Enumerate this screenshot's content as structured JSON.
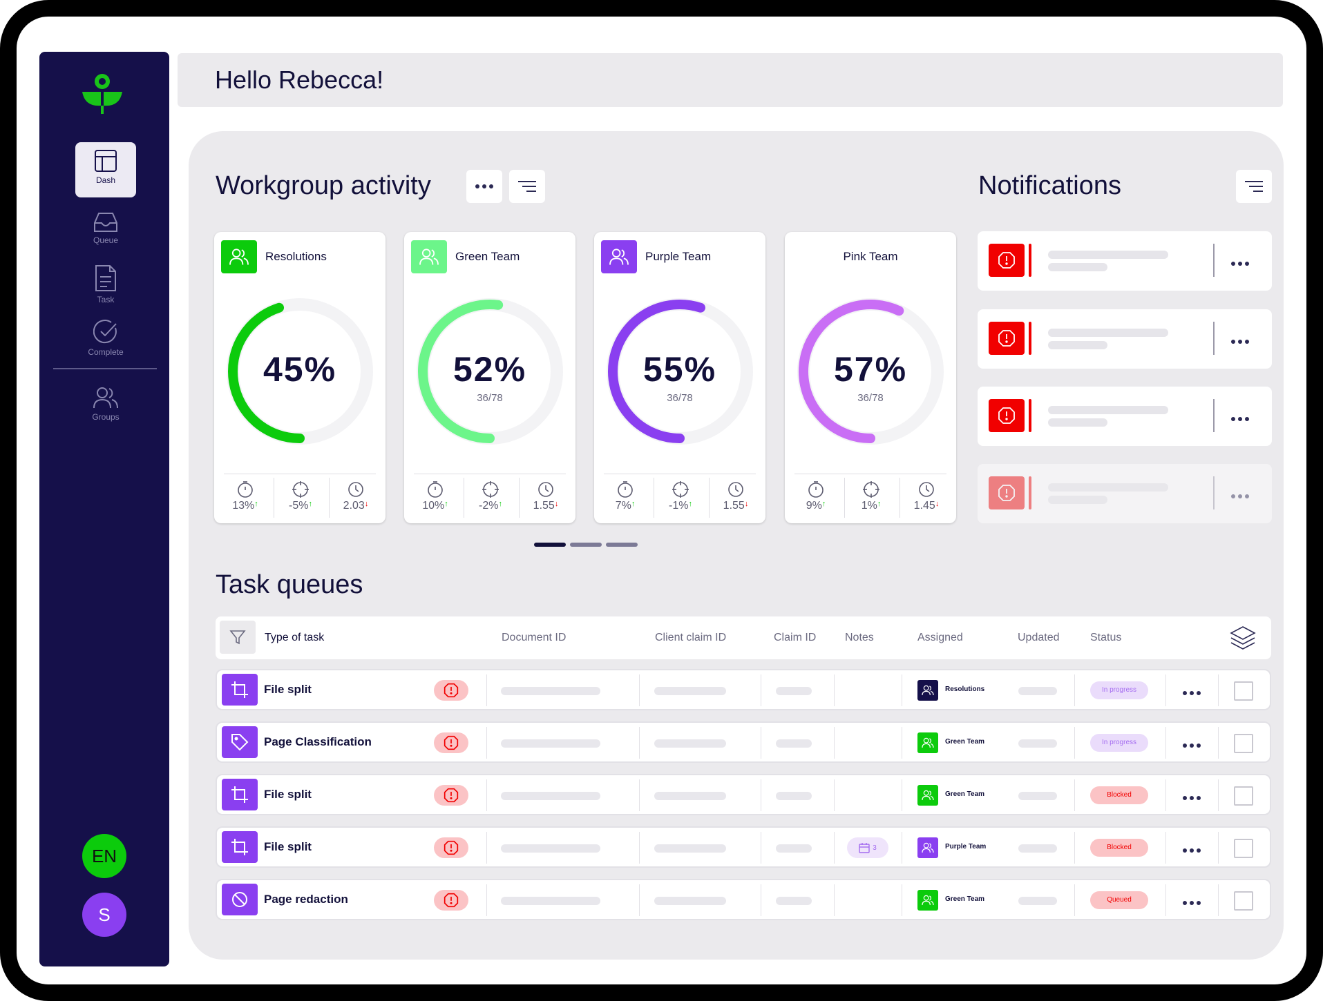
{
  "greeting": "Hello Rebecca!",
  "sidebar": {
    "items": [
      {
        "label": "Dash",
        "icon": "layout-icon",
        "active": true
      },
      {
        "label": "Queue",
        "icon": "inbox-icon"
      },
      {
        "label": "Task",
        "icon": "document-icon"
      },
      {
        "label": "Complete",
        "icon": "check-circle-icon"
      },
      {
        "label": "Groups",
        "icon": "users-icon"
      }
    ],
    "language": "EN",
    "user_initial": "S"
  },
  "workgroup": {
    "title": "Workgroup activity",
    "cards": [
      {
        "name": "Resolutions",
        "percent": "45%",
        "percent_value": 45,
        "ratio": "",
        "color": "#0ccb0c",
        "badge_color": "#0ccb0c",
        "stats": [
          {
            "value": "13%",
            "trend": "↑",
            "trend_color": "#0ccb0c"
          },
          {
            "value": "-5%",
            "trend": "↑",
            "trend_color": "#0ccb0c"
          },
          {
            "value": "2.03",
            "trend": "↓",
            "trend_color": "#f10000"
          }
        ]
      },
      {
        "name": "Green Team",
        "percent": "52%",
        "percent_value": 52,
        "ratio": "36/78",
        "color": "#6cf58a",
        "badge_color": "#6cf58a",
        "stats": [
          {
            "value": "10%",
            "trend": "↑",
            "trend_color": "#0ccb0c"
          },
          {
            "value": "-2%",
            "trend": "↑",
            "trend_color": "#0ccb0c"
          },
          {
            "value": "1.55",
            "trend": "↓",
            "trend_color": "#f10000"
          }
        ]
      },
      {
        "name": "Purple Team",
        "percent": "55%",
        "percent_value": 55,
        "ratio": "36/78",
        "color": "#8a3ff0",
        "badge_color": "#8a3ff0",
        "stats": [
          {
            "value": "7%",
            "trend": "↑",
            "trend_color": "#0ccb0c"
          },
          {
            "value": "-1%",
            "trend": "↑",
            "trend_color": "#0ccb0c"
          },
          {
            "value": "1.55",
            "trend": "↓",
            "trend_color": "#f10000"
          }
        ]
      },
      {
        "name": "Pink Team",
        "percent": "57%",
        "percent_value": 57,
        "ratio": "36/78",
        "color": "#c96ef5",
        "badge_color": "",
        "stats": [
          {
            "value": "9%",
            "trend": "↑",
            "trend_color": "#0ccb0c"
          },
          {
            "value": "1%",
            "trend": "↑",
            "trend_color": "#0ccb0c"
          },
          {
            "value": "1.45",
            "trend": "↓",
            "trend_color": "#f10000"
          }
        ]
      }
    ]
  },
  "notifications": {
    "title": "Notifications",
    "count": 4
  },
  "task_queues": {
    "title": "Task queues",
    "columns": [
      "Type of task",
      "Document ID",
      "Client claim ID",
      "Claim ID",
      "Notes",
      "Assigned",
      "Updated",
      "Status"
    ],
    "rows": [
      {
        "type": "File split",
        "icon": "crop-icon",
        "assigned": "Resolutions",
        "assigned_color": "#15104a",
        "note": "",
        "status": "In progress",
        "status_bg": "#eadcfb",
        "status_fg": "#a46cf0"
      },
      {
        "type": "Page Classification",
        "icon": "tag-icon",
        "assigned": "Green Team",
        "assigned_color": "#0ccb0c",
        "note": "",
        "status": "In progress",
        "status_bg": "#eadcfb",
        "status_fg": "#a46cf0"
      },
      {
        "type": "File split",
        "icon": "crop-icon",
        "assigned": "Green Team",
        "assigned_color": "#0ccb0c",
        "note": "",
        "status": "Blocked",
        "status_bg": "#fbc3c5",
        "status_fg": "#f10000"
      },
      {
        "type": "File split",
        "icon": "crop-icon",
        "assigned": "Purple Team",
        "assigned_color": "#8a3ff0",
        "note": "3",
        "status": "Blocked",
        "status_bg": "#fbc3c5",
        "status_fg": "#f10000"
      },
      {
        "type": "Page redaction",
        "icon": "ban-icon",
        "assigned": "Green Team",
        "assigned_color": "#0ccb0c",
        "note": "",
        "status": "Queued",
        "status_bg": "#fbc3c5",
        "status_fg": "#f10000"
      }
    ]
  }
}
